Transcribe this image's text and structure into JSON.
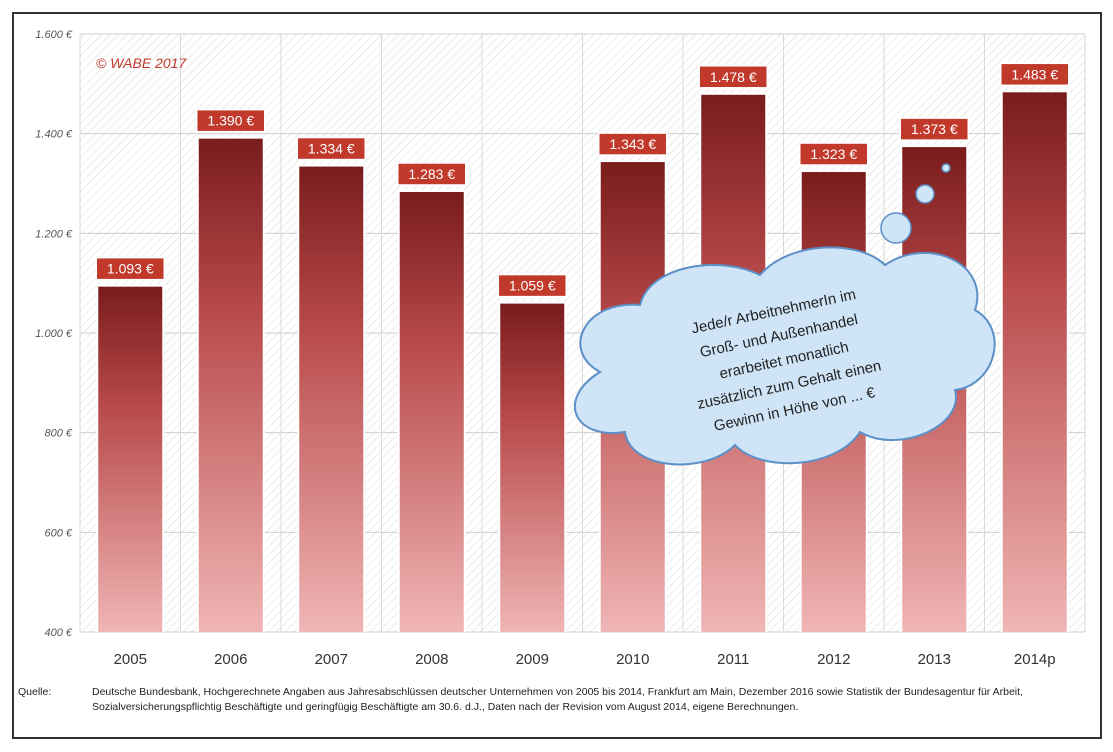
{
  "chart_data": {
    "type": "bar",
    "categories": [
      "2005",
      "2006",
      "2007",
      "2008",
      "2009",
      "2010",
      "2011",
      "2012",
      "2013",
      "2014p"
    ],
    "values": [
      1093,
      1390,
      1334,
      1283,
      1059,
      1343,
      1478,
      1323,
      1373,
      1483
    ],
    "value_labels": [
      "1.093 €",
      "1.390 €",
      "1.334 €",
      "1.283 €",
      "1.059 €",
      "1.343 €",
      "1.478 €",
      "1.323 €",
      "1.373 €",
      "1.483 €"
    ],
    "ylim": [
      400,
      1600
    ],
    "yticks": [
      400,
      600,
      800,
      1000,
      1200,
      1400,
      1600
    ],
    "ytick_labels": [
      "400 €",
      "600 €",
      "800 €",
      "1.000 €",
      "1.200 €",
      "1.400 €",
      "1.600 €"
    ],
    "grid": true,
    "colors": {
      "bar_top": "#7a1c1c",
      "bar_bottom": "#f0b5b5",
      "label_bg": "#c0392b",
      "cloud": "#cfe5f7",
      "cloud_border": "#5b8fc7"
    }
  },
  "copyright": "© WABE 2017",
  "callout": {
    "lines": [
      "Jede/r ArbeitnehmerIn im",
      "Groß- und Außenhandel",
      "erarbeitet monatlich",
      "zusätzlich zum Gehalt einen",
      "Gewinn in Höhe von ... €"
    ]
  },
  "source": {
    "label": "Quelle:",
    "text": "Deutsche Bundesbank, Hochgerechnete Angaben aus Jahresabschlüssen deutscher Unternehmen von 2005 bis 2014, Frankfurt am Main, Dezember 2016 sowie Statistik der Bundesagentur für Arbeit, Sozialversicherungspflichtig Beschäftigte und geringfügig Beschäftigte am 30.6. d.J., Daten nach der Revision vom August 2014, eigene Berechnungen."
  }
}
